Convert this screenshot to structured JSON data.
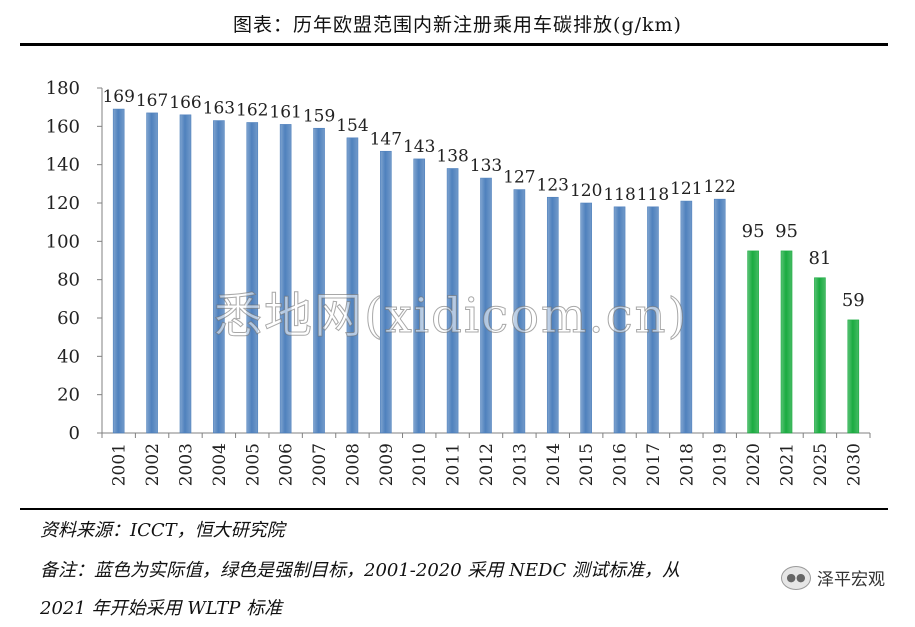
{
  "chart_data": {
    "type": "bar",
    "title": "图表：历年欧盟范围内新注册乘用车碳排放(g/km)",
    "categories": [
      "2001",
      "2002",
      "2003",
      "2004",
      "2005",
      "2006",
      "2007",
      "2008",
      "2009",
      "2010",
      "2011",
      "2012",
      "2013",
      "2014",
      "2015",
      "2016",
      "2017",
      "2018",
      "2019",
      "2020",
      "2021",
      "2025",
      "2030"
    ],
    "values": [
      169,
      167,
      166,
      163,
      162,
      161,
      159,
      154,
      147,
      143,
      138,
      133,
      127,
      123,
      120,
      118,
      118,
      121,
      122,
      95,
      95,
      81,
      59
    ],
    "series": [
      {
        "name": "实际值",
        "color": "#4f81bd",
        "from_index": 0,
        "to_index": 18
      },
      {
        "name": "强制目标",
        "color": "#1aab40",
        "from_index": 19,
        "to_index": 22
      }
    ],
    "ylim": [
      0,
      180
    ],
    "yticks": [
      0,
      20,
      40,
      60,
      80,
      100,
      120,
      140,
      160,
      180
    ],
    "xlabel": "",
    "ylabel": "",
    "grid": false,
    "legend": "none"
  },
  "notes": {
    "source": "资料来源：ICCT，恒大研究院",
    "remark_line1": "备注：蓝色为实际值，绿色是强制目标，2001-2020 采用 NEDC 测试标准，从",
    "remark_line2": "2021 年开始采用 WLTP 标准"
  },
  "watermark": {
    "overlay_text": "悉地网(xidicom.cn)",
    "corner_label": "泽平宏观",
    "corner_icon": "wechat-icon"
  }
}
